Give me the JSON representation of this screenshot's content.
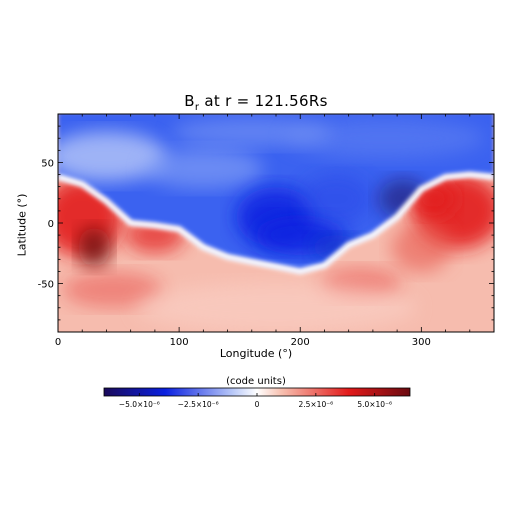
{
  "title_main": "B",
  "title_sub": "r",
  "title_rest": " at r = 121.56Rs",
  "chart_data": {
    "type": "heatmap",
    "x_label": "Longitude (°)",
    "y_label": "Latitude (°)",
    "xlim": [
      0,
      360
    ],
    "ylim": [
      -90,
      90
    ],
    "x_ticks": [
      0,
      100,
      200,
      300
    ],
    "y_ticks": [
      -50,
      0,
      50
    ],
    "neutral_line": {
      "lon": [
        0,
        20,
        40,
        60,
        80,
        100,
        120,
        140,
        160,
        180,
        200,
        220,
        240,
        260,
        280,
        300,
        320,
        340,
        360
      ],
      "lat": [
        38,
        32,
        18,
        0,
        -2,
        -5,
        -20,
        -28,
        -32,
        -36,
        -40,
        -35,
        -18,
        -10,
        5,
        28,
        38,
        40,
        38
      ]
    },
    "colorbar": {
      "title": "(code units)",
      "range": [
        -6.5e-06,
        6.5e-06
      ],
      "ticks": [
        -5e-06,
        -2.5e-06,
        0,
        2.5e-06,
        5e-06
      ],
      "tick_labels": [
        "−5.0×10⁻⁶",
        "−2.5×10⁻⁶",
        "0",
        "2.5×10⁻⁶",
        "5.0×10⁻⁶"
      ]
    },
    "colors": {
      "neg_max": "#1a0a5a",
      "neg": "#0a20e0",
      "neg_light": "#b8c8f8",
      "zero": "#ffffff",
      "pos_light": "#f7c0b0",
      "pos": "#e21a1a",
      "pos_max": "#6a0a10"
    }
  }
}
